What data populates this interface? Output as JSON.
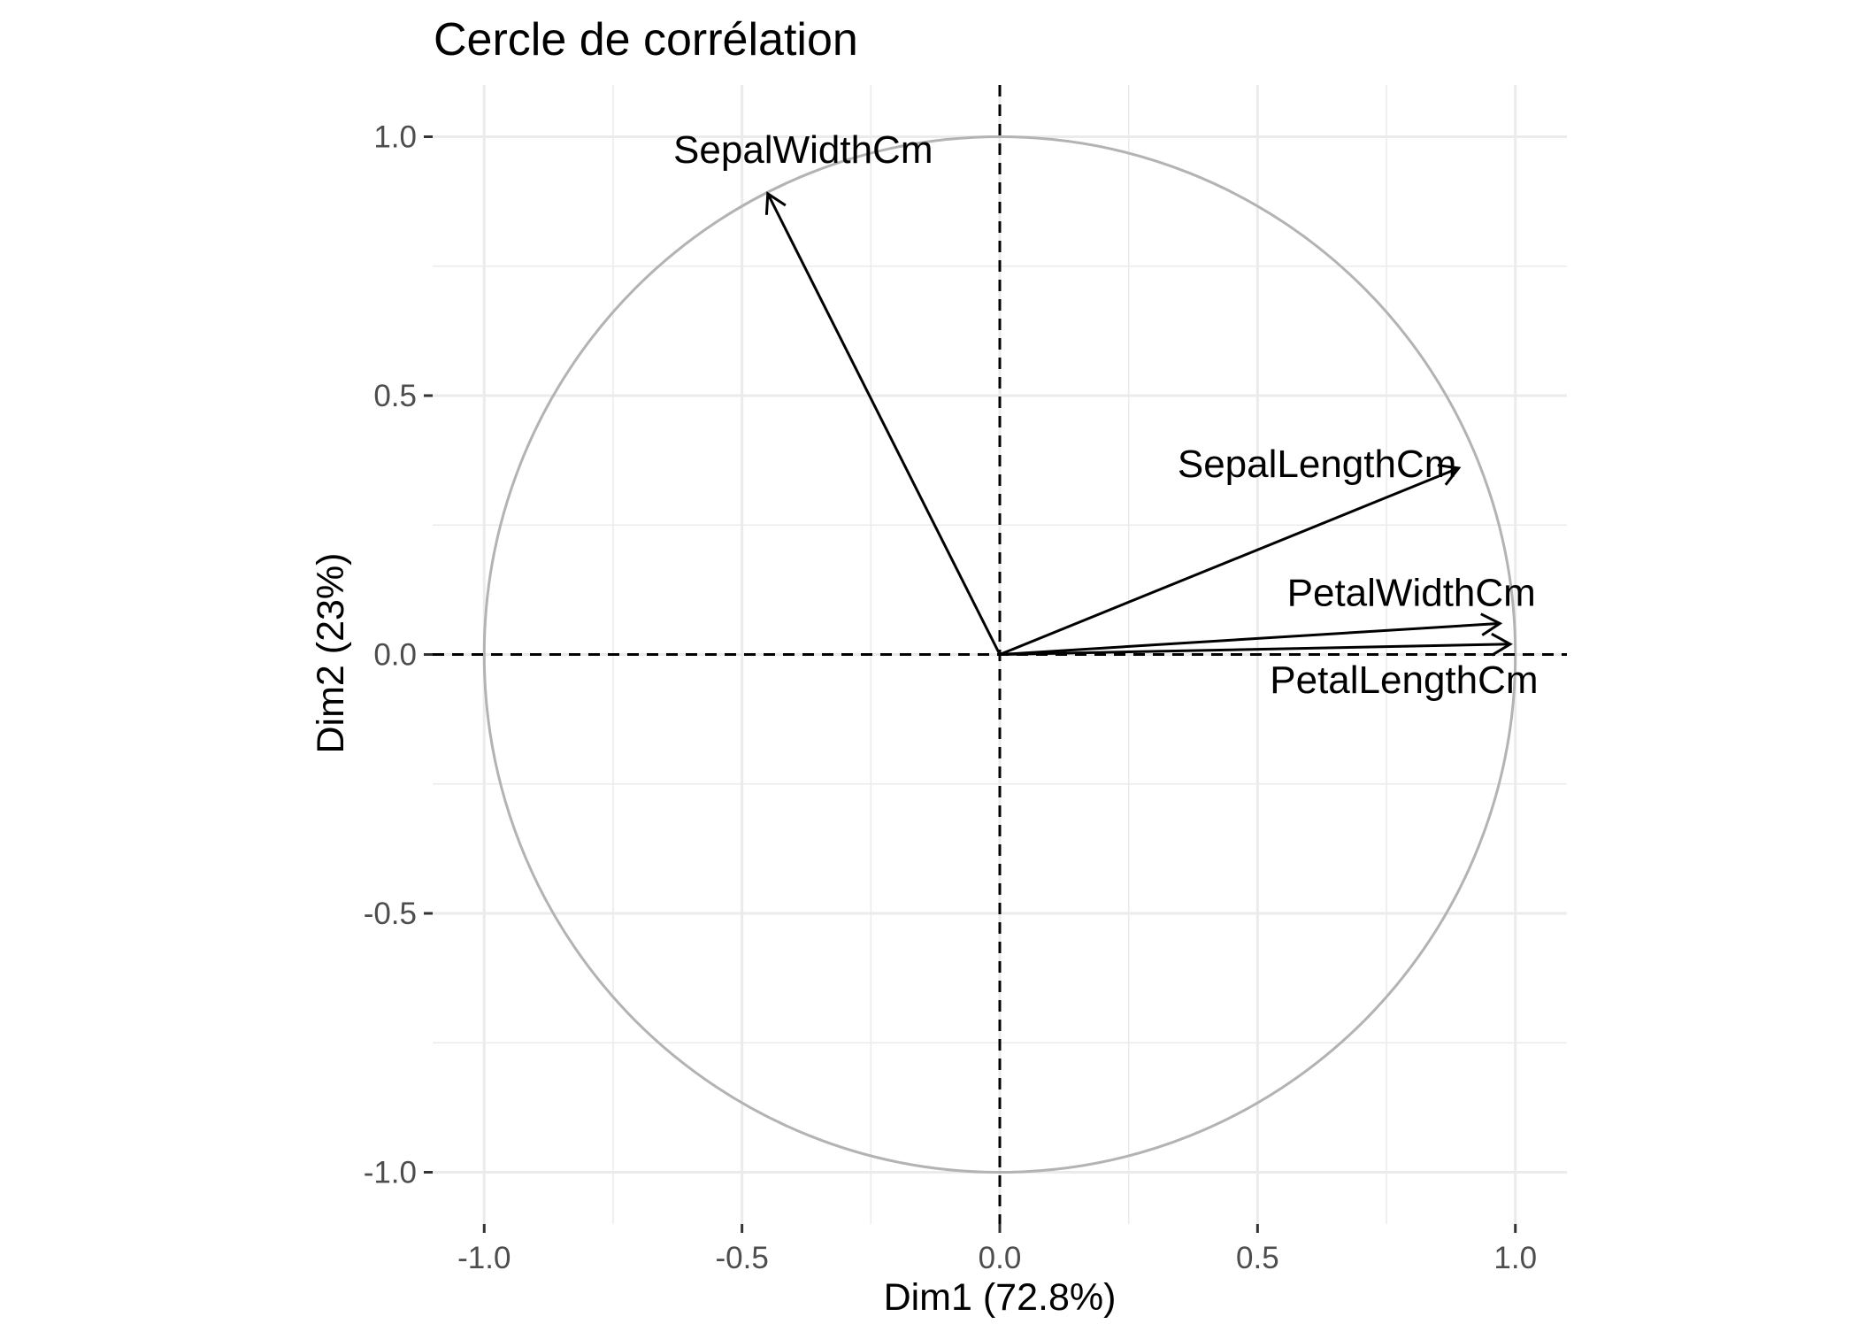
{
  "chart_data": {
    "type": "scatter",
    "title": "Cercle de corrélation",
    "xlabel": "Dim1 (72.8%)",
    "ylabel": "Dim2 (23%)",
    "xlim": [
      -1.1,
      1.1
    ],
    "ylim": [
      -1.1,
      1.1
    ],
    "x_ticks": [
      -1.0,
      -0.5,
      0.0,
      0.5,
      1.0
    ],
    "y_ticks": [
      -1.0,
      -0.5,
      0.0,
      0.5,
      1.0
    ],
    "x_tick_labels": [
      "-1.0",
      "-0.5",
      "0.0",
      "0.5",
      "1.0"
    ],
    "y_tick_labels": [
      "-1.0",
      "-0.5",
      "0.0",
      "0.5",
      "1.0"
    ],
    "grid": true,
    "unit_circle": true,
    "reference_lines": [
      "x=0 dashed",
      "y=0 dashed"
    ],
    "variables": [
      {
        "name": "SepalWidthCm",
        "x": -0.45,
        "y": 0.89
      },
      {
        "name": "SepalLengthCm",
        "x": 0.89,
        "y": 0.36
      },
      {
        "name": "PetalWidthCm",
        "x": 0.97,
        "y": 0.06
      },
      {
        "name": "PetalLengthCm",
        "x": 0.99,
        "y": 0.02
      }
    ],
    "colors": {
      "circle": "#b3b3b3",
      "grid": "#ebebeb",
      "arrow": "#000000",
      "reference": "#000000"
    }
  }
}
